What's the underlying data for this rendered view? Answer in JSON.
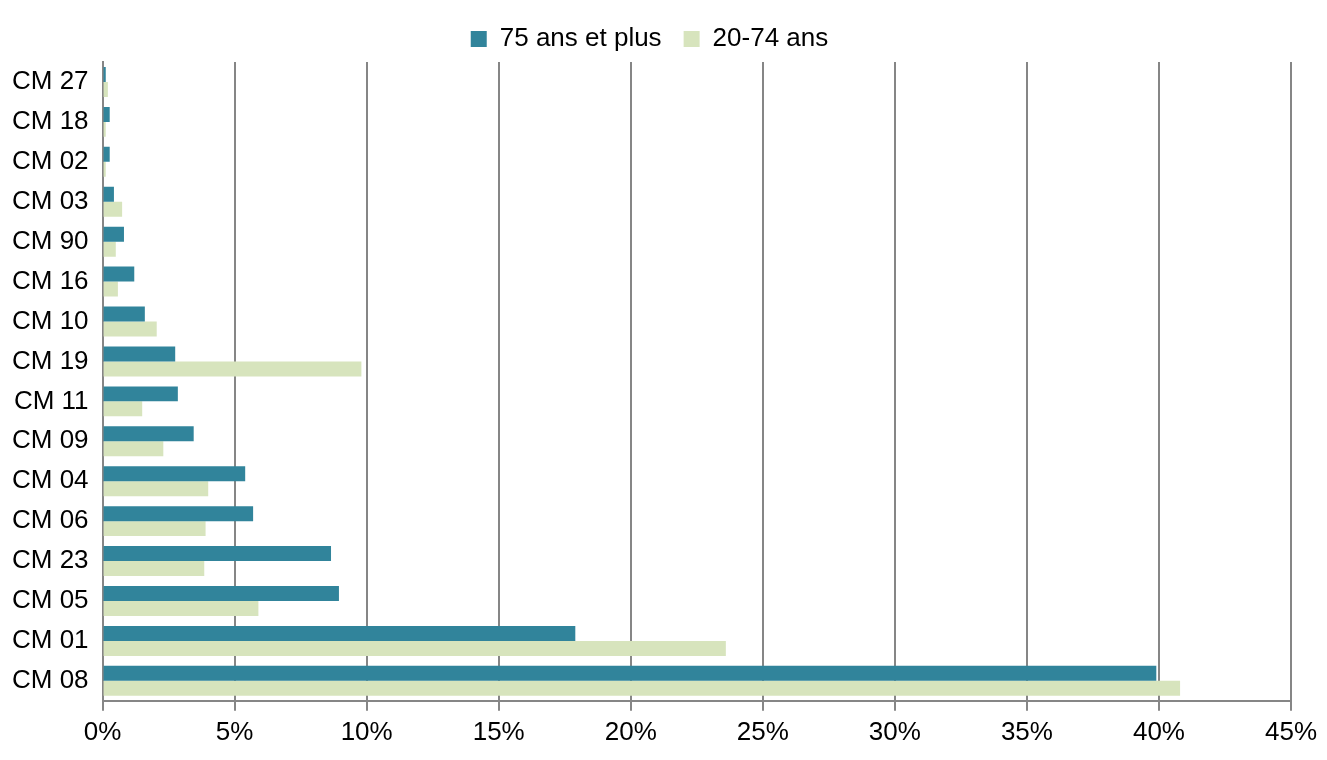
{
  "chart_data": {
    "type": "bar",
    "orientation": "horizontal",
    "categories": [
      "CM 27",
      "CM 18",
      "CM 02",
      "CM 03",
      "CM 90",
      "CM 16",
      "CM 10",
      "CM 19",
      "CM 11",
      "CM 09",
      "CM 04",
      "CM 06",
      "CM 23",
      "CM 05",
      "CM 01",
      "CM 08"
    ],
    "series": [
      {
        "name": "75 ans et plus",
        "color": "#31849b",
        "values": [
          0.12,
          0.27,
          0.27,
          0.43,
          0.81,
          1.2,
          1.6,
          2.75,
          2.85,
          3.45,
          5.4,
          5.7,
          8.65,
          8.95,
          17.9,
          39.9
        ]
      },
      {
        "name": "20-74 ans",
        "color": "#d7e4bd",
        "values": [
          0.2,
          0.12,
          0.12,
          0.74,
          0.5,
          0.58,
          2.05,
          9.8,
          1.5,
          2.3,
          4.0,
          3.9,
          3.85,
          5.9,
          23.6,
          40.8
        ]
      }
    ],
    "xlim": [
      0,
      45
    ],
    "xticks": [
      {
        "value": 0,
        "label": "0%"
      },
      {
        "value": 5,
        "label": "5%"
      },
      {
        "value": 10,
        "label": "10%"
      },
      {
        "value": 15,
        "label": "15%"
      },
      {
        "value": 20,
        "label": "20%"
      },
      {
        "value": 25,
        "label": "25%"
      },
      {
        "value": 30,
        "label": "30%"
      },
      {
        "value": 35,
        "label": "35%"
      },
      {
        "value": 40,
        "label": "40%"
      },
      {
        "value": 45,
        "label": "45%"
      }
    ],
    "grid": "x",
    "legend": "top"
  }
}
